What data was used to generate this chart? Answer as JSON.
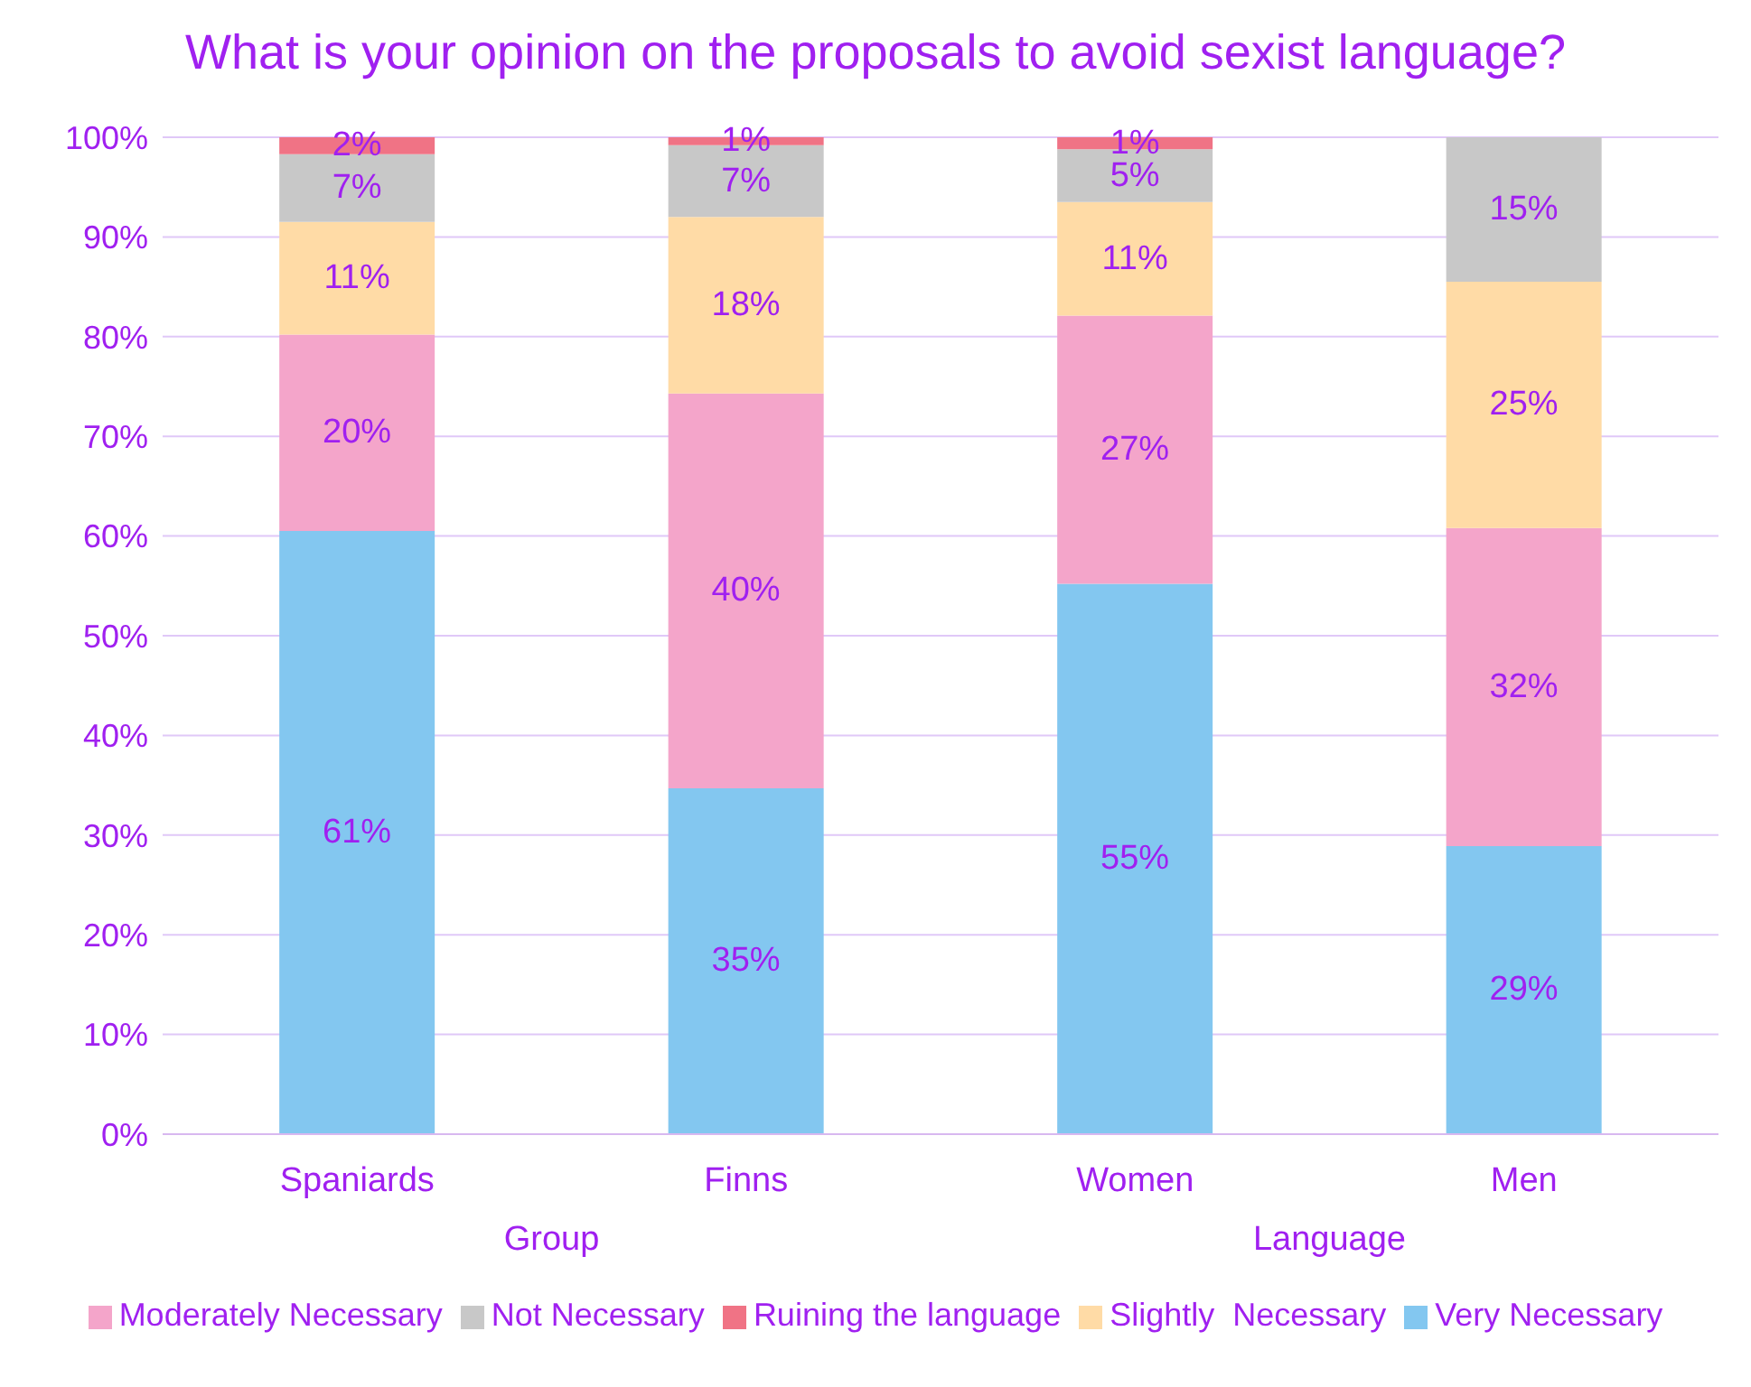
{
  "chart_data": {
    "type": "bar",
    "title": "What is your opinion on the proposals to avoid sexist language?",
    "categories": [
      "Spaniards",
      "Finns",
      "Women",
      "Men"
    ],
    "stacked": true,
    "ylim": [
      0,
      100
    ],
    "yticks": [
      {
        "value": 0,
        "label": "0%"
      },
      {
        "value": 10,
        "label": "10%"
      },
      {
        "value": 20,
        "label": "20%"
      },
      {
        "value": 30,
        "label": "30%"
      },
      {
        "value": 40,
        "label": "40%"
      },
      {
        "value": 50,
        "label": "50%"
      },
      {
        "value": 60,
        "label": "60%"
      },
      {
        "value": 70,
        "label": "70%"
      },
      {
        "value": 80,
        "label": "80%"
      },
      {
        "value": 90,
        "label": "90%"
      },
      {
        "value": 100,
        "label": "100%"
      }
    ],
    "grid": "y",
    "legend": "bottom",
    "annotations": [
      "Group",
      "Language"
    ],
    "series": [
      {
        "name": "Very Necessary",
        "color": "#83c7f0",
        "values": [
          60.5,
          34.7,
          55.2,
          28.9
        ],
        "value_labels": [
          "61%",
          "35%",
          "55%",
          "29%"
        ]
      },
      {
        "name": "Moderately Necessary",
        "color": "#f4a5ca",
        "values": [
          19.7,
          39.6,
          26.9,
          31.9
        ],
        "value_labels": [
          "20%",
          "40%",
          "27%",
          "32%"
        ]
      },
      {
        "name": "Slightly  Necessary",
        "color": "#ffdba6",
        "values": [
          11.3,
          17.7,
          11.4,
          24.7
        ],
        "value_labels": [
          "11%",
          "18%",
          "11%",
          "25%"
        ]
      },
      {
        "name": "Not Necessary",
        "color": "#c8c8c8",
        "values": [
          6.8,
          7.2,
          5.3,
          14.5
        ],
        "value_labels": [
          "7%",
          "7%",
          "5%",
          "15%"
        ]
      },
      {
        "name": "Ruining the language",
        "color": "#f07385",
        "values": [
          1.7,
          0.8,
          1.2,
          null
        ],
        "value_labels": [
          "2%",
          "1%",
          "1%",
          null
        ]
      }
    ]
  }
}
